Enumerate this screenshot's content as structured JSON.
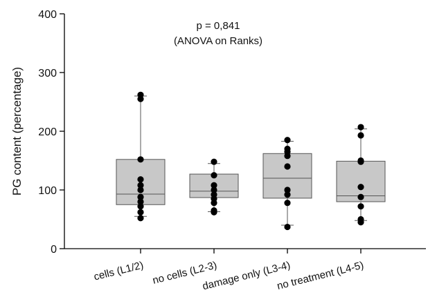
{
  "chart_data": {
    "type": "box",
    "ylabel": "PG content (percentage)",
    "ylim": [
      0,
      400
    ],
    "y_ticks": [
      0,
      100,
      200,
      300,
      400
    ],
    "grid": false,
    "legend": "none",
    "annotations": [
      "p = 0,841",
      "(ANOVA on Ranks)"
    ],
    "colors": {
      "box_fill": "#c8c8c8",
      "box_stroke": "#555555",
      "point": "#000000",
      "axis": "#000000"
    },
    "categories": [
      "cells (L1/2)",
      "no cells (L2-3)",
      "damage only (L3-4)",
      "no treatment (L4-5)"
    ],
    "boxes": [
      {
        "category": "cells (L1/2)",
        "whisker_low": 55,
        "q1": 75,
        "median": 93,
        "q3": 152,
        "whisker_high": 260,
        "points": [
          52,
          62,
          72,
          80,
          88,
          100,
          108,
          118,
          152,
          255,
          262
        ]
      },
      {
        "category": "no cells (L2-3)",
        "whisker_low": 63,
        "q1": 87,
        "median": 98,
        "q3": 127,
        "whisker_high": 145,
        "points": [
          62,
          65,
          78,
          85,
          92,
          100,
          108,
          125,
          148
        ]
      },
      {
        "category": "damage only (L3-4)",
        "whisker_low": 40,
        "q1": 86,
        "median": 120,
        "q3": 162,
        "whisker_high": 183,
        "points": [
          37,
          78,
          92,
          100,
          140,
          158,
          165,
          170,
          185
        ]
      },
      {
        "category": "no treatment (L4-5)",
        "whisker_low": 48,
        "q1": 80,
        "median": 90,
        "q3": 149,
        "whisker_high": 204,
        "points": [
          45,
          50,
          72,
          88,
          105,
          148,
          150,
          193,
          207
        ]
      }
    ]
  }
}
